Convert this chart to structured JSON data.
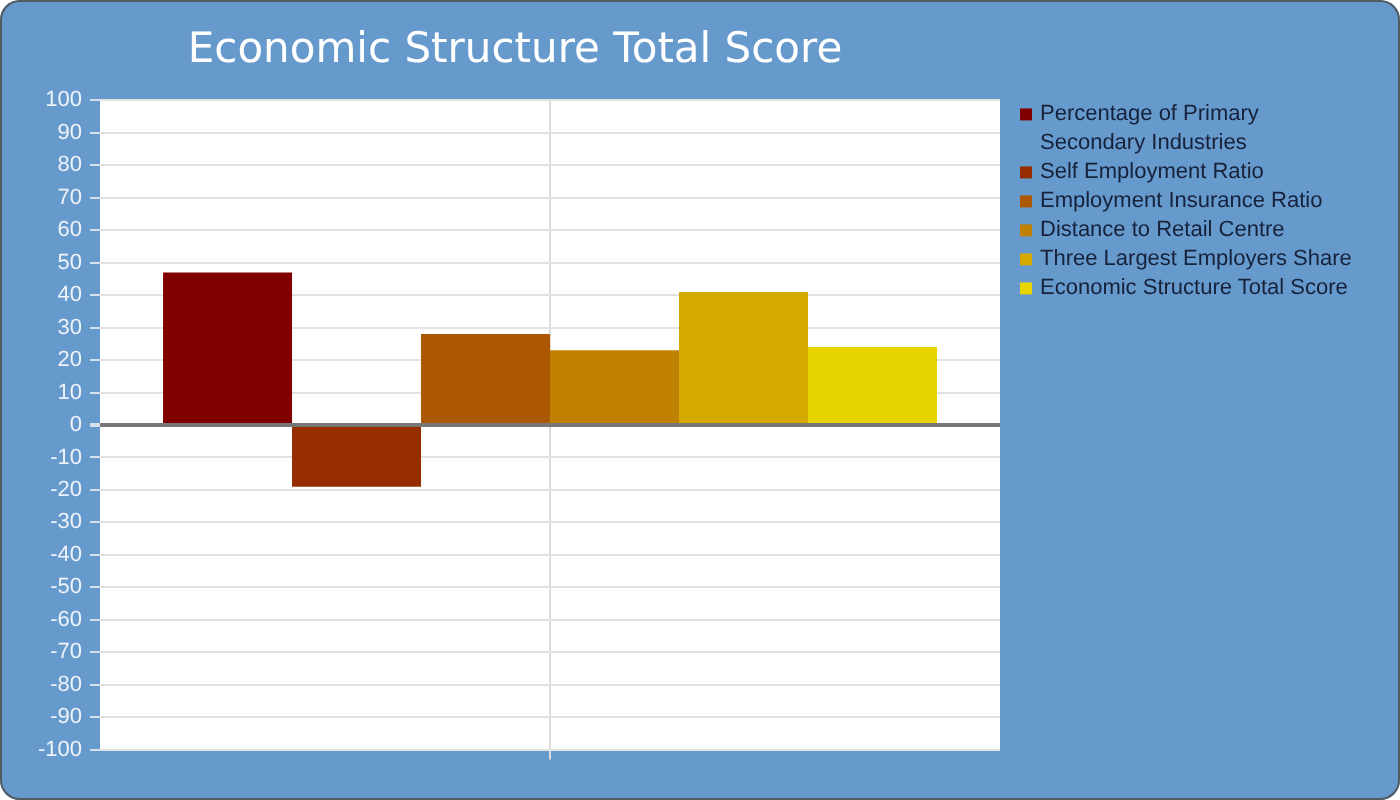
{
  "chart_data": {
    "type": "bar",
    "title": "Economic Structure Total Score",
    "categories": [
      null
    ],
    "series": [
      {
        "name": "Percentage of Primary Secondary Industries",
        "color": "#800000",
        "values": [
          47
        ]
      },
      {
        "name": "Self Employment Ratio",
        "color": "#952d00",
        "values": [
          -19
        ]
      },
      {
        "name": "Employment Insurance Ratio",
        "color": "#ab5800",
        "values": [
          28
        ]
      },
      {
        "name": "Distance to Retail Centre",
        "color": "#c08000",
        "values": [
          23
        ]
      },
      {
        "name": "Three Largest Employers Share",
        "color": "#d4aa00",
        "values": [
          41
        ]
      },
      {
        "name": "Economic Structure Total Score",
        "color": "#e8d400",
        "values": [
          24
        ]
      }
    ],
    "ylim": [
      -100,
      100
    ],
    "yticks": [
      -100,
      -90,
      -80,
      -70,
      -60,
      -50,
      -40,
      -30,
      -20,
      -10,
      0,
      10,
      20,
      30,
      40,
      50,
      60,
      70,
      80,
      90,
      100
    ],
    "grid": true,
    "legend": "top right"
  }
}
